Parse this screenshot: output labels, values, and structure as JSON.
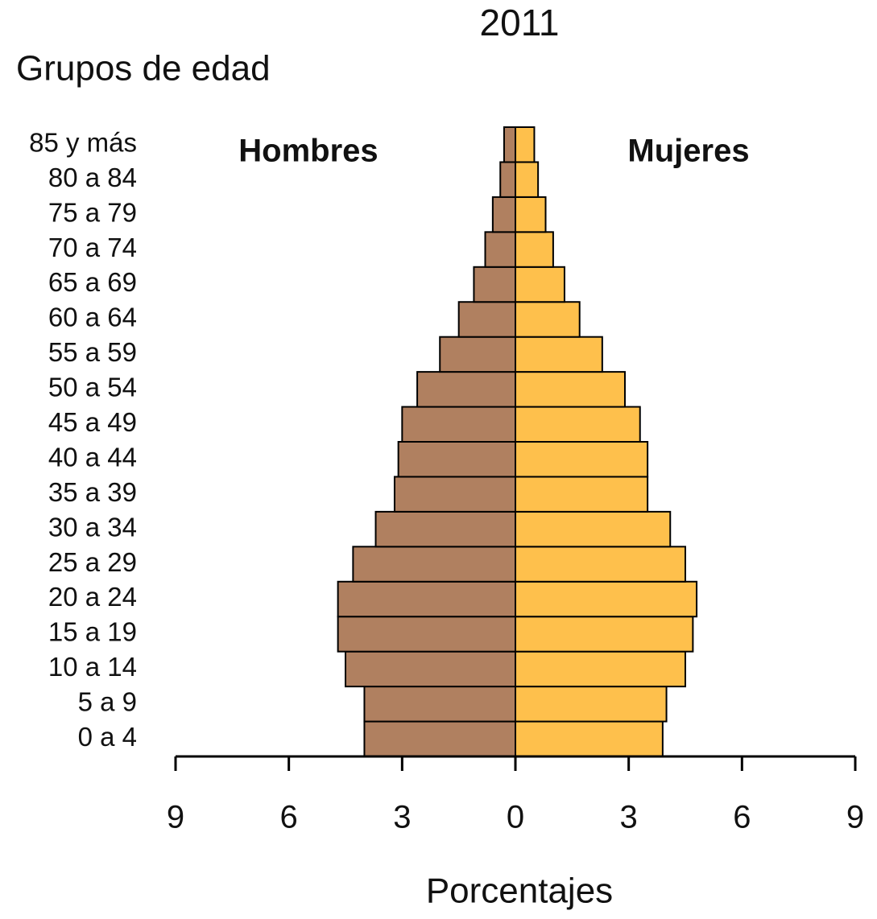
{
  "chart_data": {
    "type": "pyramid",
    "title": "2011",
    "y_label": "Grupos de edad",
    "x_label": "Porcentajes",
    "categories": [
      "0 a 4",
      "5 a 9",
      "10 a 14",
      "15 a 19",
      "20 a 24",
      "25 a 29",
      "30 a 34",
      "35 a 39",
      "40 a 44",
      "45 a 49",
      "50 a 54",
      "55 a 59",
      "60 a 64",
      "65 a 69",
      "70 a 74",
      "75 a 79",
      "80 a 84",
      "85 y más"
    ],
    "series": [
      {
        "name": "Hombres",
        "color": "#b08060",
        "values": [
          4.0,
          4.0,
          4.5,
          4.7,
          4.7,
          4.3,
          3.7,
          3.2,
          3.1,
          3.0,
          2.6,
          2.0,
          1.5,
          1.1,
          0.8,
          0.6,
          0.4,
          0.3
        ]
      },
      {
        "name": "Mujeres",
        "color": "#fec04c",
        "values": [
          3.9,
          4.0,
          4.5,
          4.7,
          4.8,
          4.5,
          4.1,
          3.5,
          3.5,
          3.3,
          2.9,
          2.3,
          1.7,
          1.3,
          1.0,
          0.8,
          0.6,
          0.5
        ]
      }
    ],
    "xlim": [
      -9,
      9
    ],
    "xticks": [
      {
        "value": -9,
        "label": "9"
      },
      {
        "value": -6,
        "label": "6"
      },
      {
        "value": -3,
        "label": "3"
      },
      0,
      3,
      6,
      9
    ]
  }
}
